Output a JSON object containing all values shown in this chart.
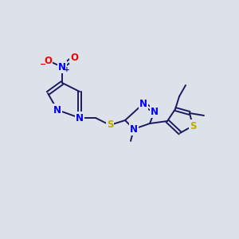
{
  "bg_color": "#dde2ea",
  "bond_color": "#1a1a5e",
  "atom_colors": {
    "N": "#0000ee",
    "O": "#ee0000",
    "S": "#bbaa00",
    "C": "#1a1a5e"
  },
  "fig_width": 3.0,
  "fig_height": 3.0,
  "dpi": 100
}
